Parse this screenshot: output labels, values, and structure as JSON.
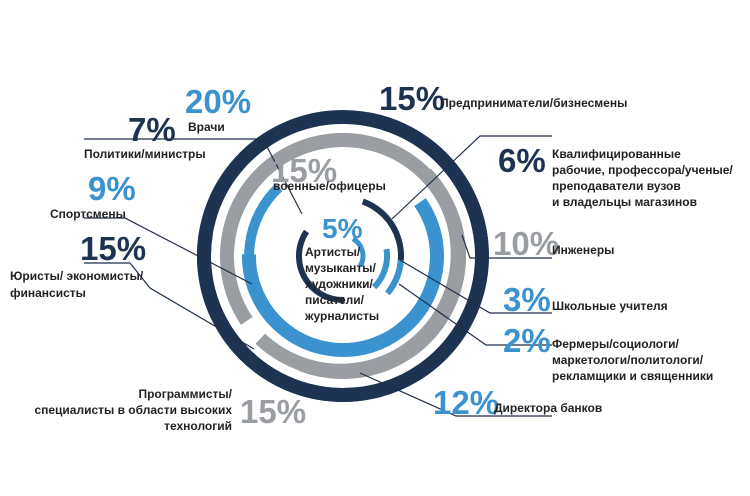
{
  "chart_data": {
    "type": "radial-bar",
    "title": "",
    "unit": "%",
    "colors": {
      "dark": "#1e3352",
      "blue": "#3a93cf",
      "gray": "#9a9ea3"
    },
    "segments": [
      {
        "pct": "20%",
        "value": 20,
        "label": [
          "Врачи"
        ],
        "color": "blue"
      },
      {
        "pct": "15%",
        "value": 15,
        "label": [
          "Предприниматели/бизнесмены"
        ],
        "color": "dark"
      },
      {
        "pct": "7%",
        "value": 7,
        "label": [
          "Политики/министры"
        ],
        "color": "dark"
      },
      {
        "pct": "15%",
        "value": 15,
        "label": [
          "военные/офицеры"
        ],
        "color": "gray"
      },
      {
        "pct": "6%",
        "value": 6,
        "label": [
          "Квалифицированные",
          "рабочие, профессора/ученые/",
          "преподаватели вузов",
          "и владельцы магазинов"
        ],
        "color": "dark"
      },
      {
        "pct": "9%",
        "value": 9,
        "label": [
          "Спортсмены"
        ],
        "color": "blue"
      },
      {
        "pct": "5%",
        "value": 5,
        "label": [
          "Артисты/",
          "музыканты/",
          "художники/",
          "писатели/",
          "журналисты"
        ],
        "color": "blue"
      },
      {
        "pct": "10%",
        "value": 10,
        "label": [
          "Инженеры"
        ],
        "color": "gray"
      },
      {
        "pct": "15%",
        "value": 15,
        "label": [
          "Юристы/ экономисты/",
          "финансисты"
        ],
        "color": "dark"
      },
      {
        "pct": "3%",
        "value": 3,
        "label": [
          "Школьные учителя"
        ],
        "color": "blue"
      },
      {
        "pct": "2%",
        "value": 2,
        "label": [
          "Фермеры/социологи/",
          "маркетологи/политологи/",
          "рекламщики и священники"
        ],
        "color": "blue"
      },
      {
        "pct": "15%",
        "value": 15,
        "label": [
          "Программисты/",
          "специалисты в области высоких",
          "технологий"
        ],
        "color": "gray"
      },
      {
        "pct": "12%",
        "value": 12,
        "label": [
          "Директора банков"
        ],
        "color": "blue"
      }
    ]
  }
}
